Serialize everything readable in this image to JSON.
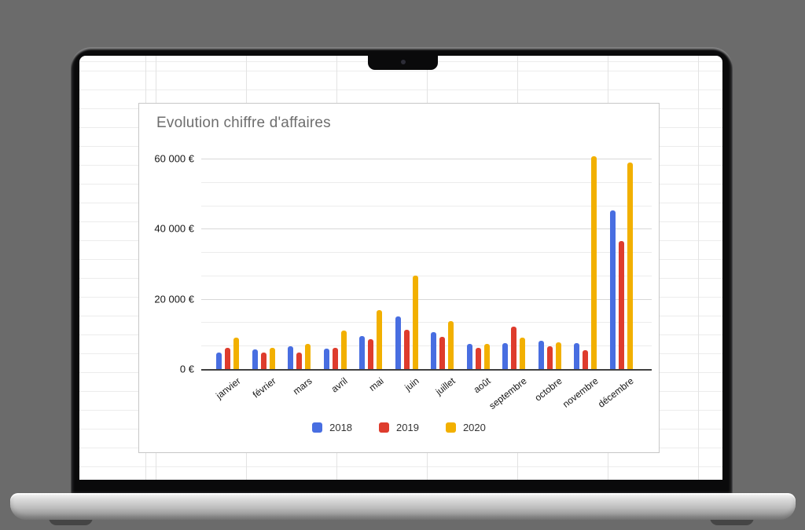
{
  "chart_data": {
    "type": "bar",
    "title": "Evolution chiffre d'affaires",
    "categories": [
      "janvier",
      "février",
      "mars",
      "avril",
      "mai",
      "juin",
      "juillet",
      "août",
      "septembre",
      "octobre",
      "novembre",
      "décembre"
    ],
    "series": [
      {
        "name": "2018",
        "color": "#486EE1",
        "values": [
          4700,
          5500,
          6400,
          5800,
          9500,
          15100,
          10500,
          7100,
          7300,
          8100,
          7400,
          45200
        ]
      },
      {
        "name": "2019",
        "color": "#DE3C2D",
        "values": [
          6000,
          4600,
          4700,
          6100,
          8600,
          11200,
          9200,
          6100,
          12000,
          6400,
          5300,
          36600
        ]
      },
      {
        "name": "2020",
        "color": "#F2B000",
        "values": [
          8900,
          6000,
          7200,
          10900,
          16700,
          26700,
          13700,
          7200,
          8900,
          7700,
          60700,
          58900
        ]
      }
    ],
    "xlabel": "",
    "ylabel": "",
    "ylim": [
      0,
      60000
    ],
    "y_ticks": [
      {
        "value": 0,
        "label": "0 €"
      },
      {
        "value": 20000,
        "label": "20 000 €"
      },
      {
        "value": 40000,
        "label": "40 000 €"
      },
      {
        "value": 60000,
        "label": "60 000 €"
      }
    ],
    "minor_gridline_divisions": 3,
    "grid": true,
    "legend_position": "bottom"
  },
  "colors": {
    "background": "#6B6B6B",
    "series_2018": "#486EE1",
    "series_2019": "#DE3C2D",
    "series_2020": "#F2B000"
  }
}
